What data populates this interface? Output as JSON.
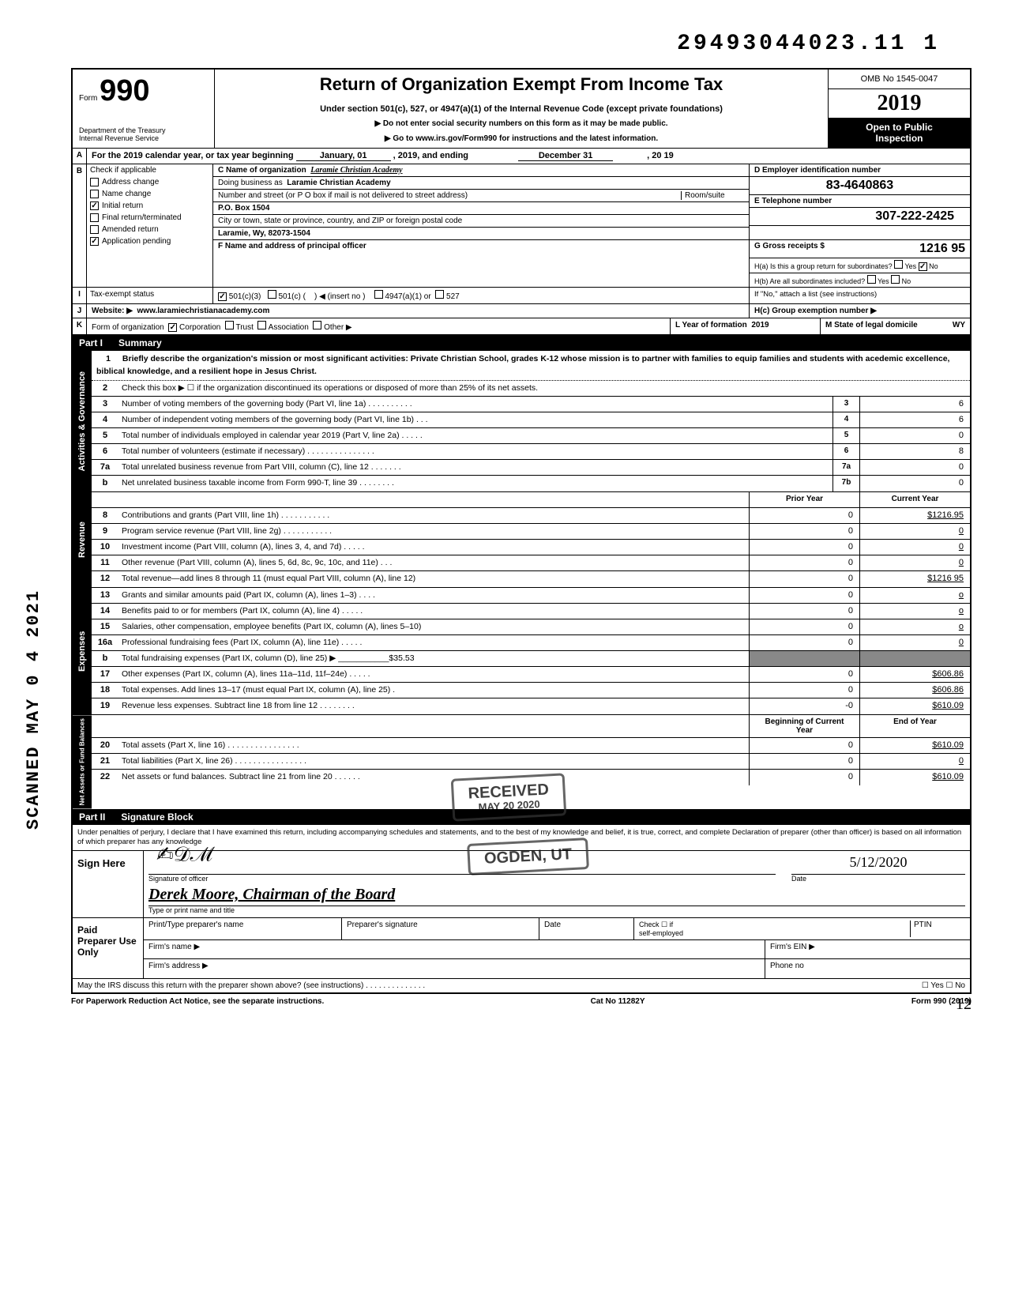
{
  "top_number": "29493044023.11  1",
  "vertical_stamp": "SCANNED MAY 0 4 2021",
  "header": {
    "form_word": "Form",
    "form_num": "990",
    "dept1": "Department of the Treasury",
    "dept2": "Internal Revenue Service",
    "title": "Return of Organization Exempt From Income Tax",
    "sub1": "Under section 501(c), 527, or 4947(a)(1) of the Internal Revenue Code (except private foundations)",
    "sub2": "▶ Do not enter social security numbers on this form as it may be made public.",
    "sub3": "▶ Go to www.irs.gov/Form990 for instructions and the latest information.",
    "omb": "OMB No  1545-0047",
    "year": "2019",
    "otp1": "Open to Public",
    "otp2": "Inspection"
  },
  "A": {
    "label": "A",
    "text": "For the 2019 calendar year, or tax year beginning",
    "begin_month": "January, 01",
    "mid": ", 2019, and ending",
    "end_month": "December 31",
    "end_year": ", 20  19"
  },
  "B": {
    "label": "B",
    "heading": "Check if applicable",
    "items": [
      {
        "label": "Address change",
        "checked": false
      },
      {
        "label": "Name change",
        "checked": false
      },
      {
        "label": "Initial return",
        "checked": true
      },
      {
        "label": "Final return/terminated",
        "checked": false
      },
      {
        "label": "Amended return",
        "checked": false
      },
      {
        "label": "Application pending",
        "checked": true
      }
    ]
  },
  "C": {
    "name_lbl": "C Name of organization",
    "name_val": "Laramie Christian Academy",
    "dba_lbl": "Doing business as",
    "dba_val": "Laramie Christian Academy",
    "addr_lbl": "Number and street (or P O  box if mail is not delivered to street address)",
    "room_lbl": "Room/suite",
    "addr_val": "P.O. Box 1504",
    "city_lbl": "City or town, state or province, country, and ZIP or foreign postal code",
    "city_val": "Laramie, Wy, 82073-1504"
  },
  "D": {
    "lbl": "D Employer identification number",
    "val": "83-4640863"
  },
  "E": {
    "lbl": "E Telephone number",
    "val": "307-222-2425"
  },
  "F": {
    "lbl": "F Name and address of principal officer"
  },
  "G": {
    "lbl": "G Gross receipts $",
    "val": "1216 95"
  },
  "H": {
    "a": "H(a) Is this a group return for subordinates?",
    "a_yes": false,
    "a_no": true,
    "b": "H(b) Are all subordinates included?",
    "b_note": "If \"No,\" attach a list  (see instructions)",
    "c": "H(c) Group exemption number ▶"
  },
  "I": {
    "lbl": "Tax-exempt status",
    "c3": true,
    "c_paren": "501(c) (",
    "insert": ") ◀ (insert no )",
    "a1": "4947(a)(1) or",
    "fivetwentyseven": "527"
  },
  "J": {
    "lbl": "Website: ▶",
    "val": "www.laramiechristianacademy.com"
  },
  "K": {
    "lbl": "Form of organization",
    "corp": true,
    "trust": false,
    "assoc": false,
    "other": "Other ▶"
  },
  "L": {
    "lbl": "L Year of formation",
    "val": "2019"
  },
  "M": {
    "lbl": "M State of legal domicile",
    "val": "WY"
  },
  "part1": {
    "num": "Part I",
    "title": "Summary"
  },
  "mission": {
    "num": "1",
    "lead": "Briefly describe the organization's mission or most significant activities:",
    "text": "Private Christian School, grades K-12 whose mission is to partner with families to equip families and students with acedemic excellence, biblical knowledge, and a resilient hope in Jesus Christ."
  },
  "gov_lines": [
    {
      "n": "2",
      "t": "Check this box ▶ ☐ if the organization discontinued its operations or disposed of more than 25% of its net assets."
    },
    {
      "n": "3",
      "t": "Number of voting members of the governing body (Part VI, line 1a) .  .  .  .  .  .  .  .  .  .",
      "b": "3",
      "v": "6"
    },
    {
      "n": "4",
      "t": "Number of independent voting members of the governing body (Part VI, line 1b)  .  .  .",
      "b": "4",
      "v": "6"
    },
    {
      "n": "5",
      "t": "Total number of individuals employed in calendar year 2019 (Part V, line 2a)  .  .  .  .  .",
      "b": "5",
      "v": "0"
    },
    {
      "n": "6",
      "t": "Total number of volunteers (estimate if necessary)  .  .  .  .  .  .  .  .  .  .  .  .  .  .  .",
      "b": "6",
      "v": "8"
    },
    {
      "n": "7a",
      "t": "Total unrelated business revenue from Part VIII, column (C), line 12  .  .  .  .  .  .  .",
      "b": "7a",
      "v": "0"
    },
    {
      "n": "b",
      "t": "Net unrelated business taxable income from Form 990-T, line 39  .  .  .  .  .  .  .  .",
      "b": "7b",
      "v": "0"
    }
  ],
  "rev_hdr": {
    "prior": "Prior Year",
    "curr": "Current Year"
  },
  "rev_lines": [
    {
      "n": "8",
      "t": "Contributions and grants (Part VIII, line 1h)  .  .  .  .  .  .  .  .  .  .  .",
      "p": "0",
      "c": "$1216.95"
    },
    {
      "n": "9",
      "t": "Program service revenue (Part VIII, line 2g)  .  .  .  .  .  .  .  .  .  .  .",
      "p": "0",
      "c": "0"
    },
    {
      "n": "10",
      "t": "Investment income (Part VIII, column (A), lines 3, 4, and 7d)  .  .  .  .  .",
      "p": "0",
      "c": "0"
    },
    {
      "n": "11",
      "t": "Other revenue (Part VIII, column (A), lines 5, 6d, 8c, 9c, 10c, and 11e)  .  .  .",
      "p": "0",
      "c": "0"
    },
    {
      "n": "12",
      "t": "Total revenue—add lines 8 through 11 (must equal Part VIII, column (A), line 12)",
      "p": "0",
      "c": "$1216 95"
    }
  ],
  "exp_lines": [
    {
      "n": "13",
      "t": "Grants and similar amounts paid (Part IX, column (A), lines 1–3)  .  .  .  .",
      "p": "0",
      "c": "o"
    },
    {
      "n": "14",
      "t": "Benefits paid to or for members (Part IX, column (A), line 4)  .  .  .  .  .",
      "p": "0",
      "c": "o"
    },
    {
      "n": "15",
      "t": "Salaries, other compensation, employee benefits (Part IX, column (A), lines 5–10)",
      "p": "0",
      "c": "o"
    },
    {
      "n": "16a",
      "t": "Professional fundraising fees (Part IX, column (A), line 11e)  .  .  .  .  .",
      "p": "0",
      "c": "0"
    },
    {
      "n": "b",
      "t": "Total fundraising expenses (Part IX, column (D), line 25) ▶ ___________$35.53",
      "shade": true
    },
    {
      "n": "17",
      "t": "Other expenses (Part IX, column (A), lines 11a–11d, 11f–24e)  .  .  .  .  .",
      "p": "0",
      "c": "$606.86"
    },
    {
      "n": "18",
      "t": "Total expenses. Add lines 13–17 (must equal Part IX, column (A), line 25)  .",
      "p": "0",
      "c": "$606.86"
    },
    {
      "n": "19",
      "t": "Revenue less expenses. Subtract line 18 from line 12  .  .  .  .  .  .  .  .",
      "p": "-0",
      "c": "$610.09"
    }
  ],
  "na_hdr": {
    "begin": "Beginning of Current Year",
    "end": "End of Year"
  },
  "na_lines": [
    {
      "n": "20",
      "t": "Total assets (Part X, line 16)  .  .  .  .  .  .  .  .  .  .  .  .  .  .  .  .",
      "p": "0",
      "c": "$610.09"
    },
    {
      "n": "21",
      "t": "Total liabilities (Part X, line 26) .  .  .  .  .  .  .  .  .  .  .  .  .  .  .  .",
      "p": "0",
      "c": "0"
    },
    {
      "n": "22",
      "t": "Net assets or fund balances. Subtract line 21 from line 20  .  .  .  .  .  .",
      "p": "0",
      "c": "$610.09"
    }
  ],
  "stamps": {
    "received": "RECEIVED",
    "date": "MAY 20 2020",
    "ogden": "OGDEN, UT"
  },
  "part2": {
    "num": "Part II",
    "title": "Signature Block"
  },
  "perjury": "Under penalties of perjury, I declare that I have examined this return, including accompanying schedules and statements, and to the best of my knowledge and belief, it is true, correct, and complete  Declaration of preparer (other than officer) is based on all information of which preparer has any knowledge",
  "sign": {
    "here": "Sign Here",
    "sig_cap": "Signature of officer",
    "name_cap": "Type or print name and title",
    "name_val": "Derek Moore, Chairman of the Board",
    "date_cap": "Date",
    "date_val": "5/12/2020"
  },
  "paid": {
    "lbl": "Paid Preparer Use Only",
    "h1": "Print/Type preparer's name",
    "h2": "Preparer's signature",
    "h3": "Date",
    "h4a": "Check ☐ if",
    "h4b": "self-employed",
    "h5": "PTIN",
    "firm": "Firm's name  ▶",
    "faddr": "Firm's address ▶",
    "fein": "Firm's EIN ▶",
    "phone": "Phone no"
  },
  "discuss": "May the IRS discuss this return with the preparer shown above? (see instructions)  .  .  .  .  .  .  .  .  .  .  .  .  .  .",
  "discuss_yn": "☐ Yes ☐ No",
  "footer": {
    "l": "For Paperwork Reduction Act Notice, see the separate instructions.",
    "m": "Cat No  11282Y",
    "r": "Form 990 (2019)"
  },
  "page_corner": "12"
}
